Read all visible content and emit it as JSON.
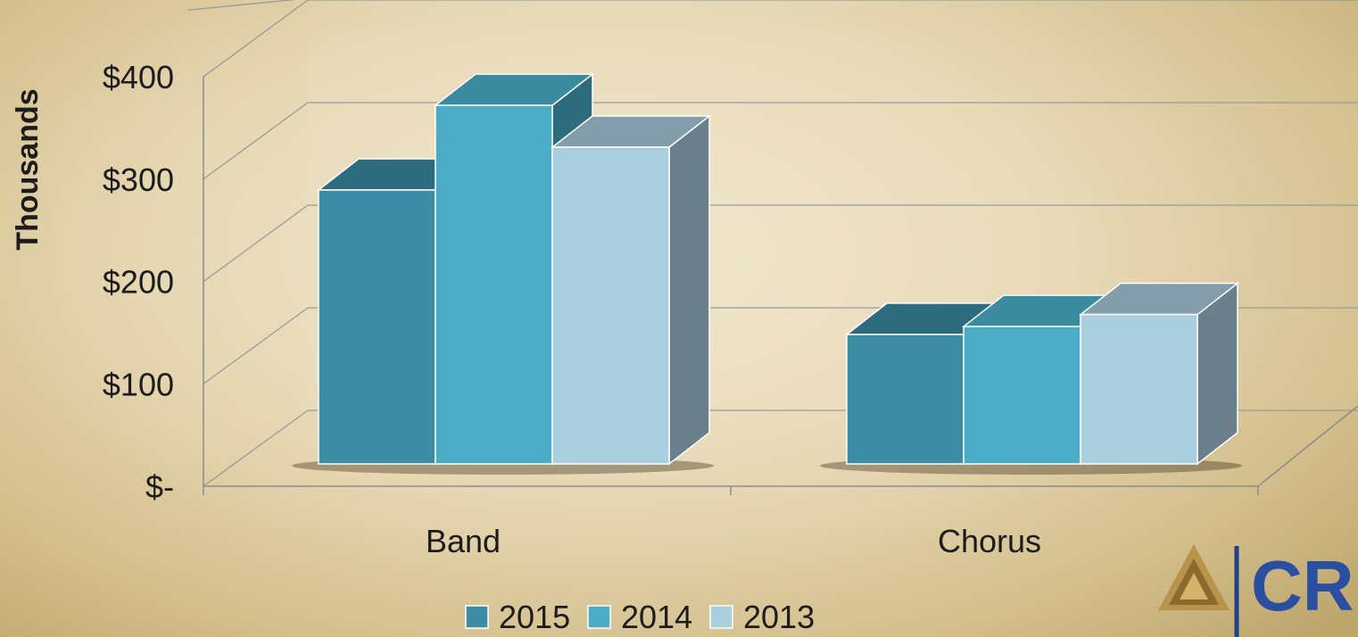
{
  "chart_data": {
    "type": "bar",
    "categories": [
      "Band",
      "Chorus"
    ],
    "series": [
      {
        "name": "2015",
        "values": [
          275,
          130
        ]
      },
      {
        "name": "2014",
        "values": [
          360,
          138
        ]
      },
      {
        "name": "2013",
        "values": [
          318,
          150
        ]
      }
    ],
    "ylabel": "Thousands",
    "ylim": [
      0,
      400
    ],
    "yticks": [
      0,
      100,
      200,
      300,
      400
    ],
    "ytick_labels": [
      "$-",
      "$100",
      "$200",
      "$300",
      "$400"
    ],
    "grid": true,
    "legend": "bottom",
    "colors": [
      "#3c8da4",
      "#4aacc6",
      "#a9cfde"
    ],
    "top_colors": [
      "#2d6b7e",
      "#3a8aa0",
      "#849daa"
    ],
    "side_colors": [
      "#2d6b7e",
      "#2d6b7e",
      "#6b7f8c"
    ]
  },
  "logo": {
    "text": "CRI",
    "icon": "triangle-mountain-icon"
  }
}
